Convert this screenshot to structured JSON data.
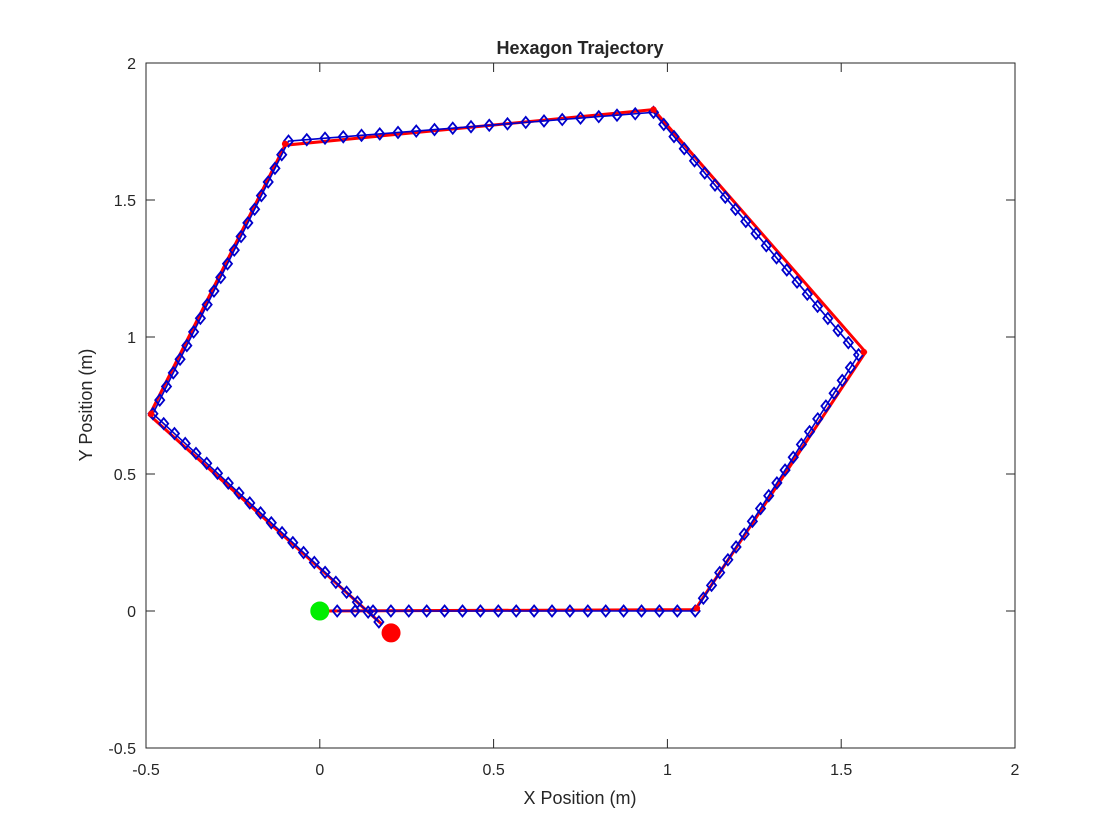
{
  "chart_data": {
    "type": "line",
    "title": "Hexagon Trajectory",
    "xlabel": "X Position (m)",
    "ylabel": "Y Position (m)",
    "xlim": [
      -0.5,
      2
    ],
    "ylim": [
      -0.5,
      2
    ],
    "xticks": [
      -0.5,
      0,
      0.5,
      1,
      1.5,
      2
    ],
    "yticks": [
      -0.5,
      0,
      0.5,
      1,
      1.5,
      2
    ],
    "xtick_labels": [
      "-0.5",
      "0",
      "0.5",
      "1",
      "1.5",
      "2"
    ],
    "ytick_labels": [
      "-0.5",
      "0",
      "0.5",
      "1",
      "1.5",
      "2"
    ],
    "grid": false,
    "legend": "none",
    "series": [
      {
        "kind": "reference-path",
        "color": "#ff0000",
        "x": [
          0,
          1.08,
          1.57,
          0.96,
          -0.1,
          -0.49,
          0.18
        ],
        "y": [
          0,
          0.005,
          0.945,
          1.83,
          1.7,
          0.715,
          -0.05
        ]
      },
      {
        "kind": "trajectory",
        "color": "#0000cc",
        "marker": "diamond",
        "points_per_segment": [
          21,
          21,
          21,
          21,
          21,
          22
        ],
        "x": [
          0.05,
          1.08,
          1.55,
          0.96,
          -0.09,
          -0.48,
          0.17
        ],
        "y": [
          0,
          0,
          0.935,
          1.82,
          1.715,
          0.72,
          -0.04
        ]
      }
    ],
    "markers": [
      {
        "kind": "start",
        "color": "#00ee00",
        "x": 0,
        "y": 0
      },
      {
        "kind": "end",
        "color": "#ff0000",
        "x": 0.205,
        "y": -0.08
      }
    ],
    "waypoints": {
      "color": "#ff0000",
      "x": [
        1.085,
        1.565,
        0.96,
        -0.1,
        -0.485
      ],
      "y": [
        0.01,
        0.945,
        1.83,
        1.705,
        0.72
      ]
    }
  }
}
